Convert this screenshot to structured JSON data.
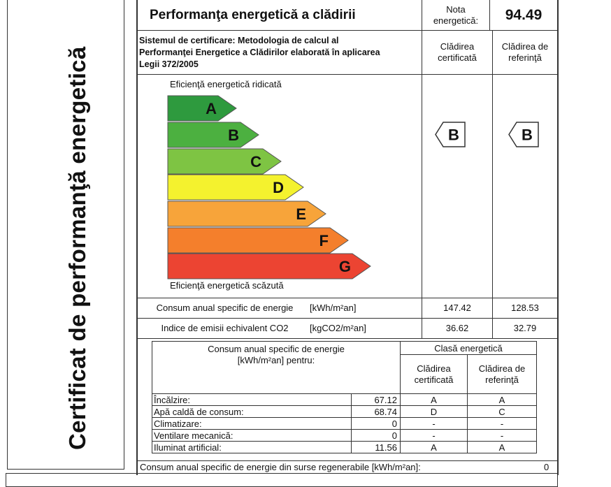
{
  "side_title": "Certificat de performanţă energetică",
  "header": {
    "title": "Performanţa energetică a clădirii",
    "score_label": "Nota energetică:",
    "score_value": "94.49"
  },
  "system": {
    "text": "Sistemul de certificare: Metodologia de calcul al Performanţei Energetice a Clădirilor elaborată în aplicarea Legii 372/2005",
    "col_certified": "Clădirea certificată",
    "col_reference": "Clădirea de referinţă"
  },
  "scale": {
    "top_label": "Eficienţă energetică ridicată",
    "bottom_label": "Eficienţă energetică scăzută",
    "classes": [
      {
        "letter": "A",
        "color": "#2e9a3e"
      },
      {
        "letter": "B",
        "color": "#4cb040"
      },
      {
        "letter": "C",
        "color": "#7ec443"
      },
      {
        "letter": "D",
        "color": "#f4f22e"
      },
      {
        "letter": "E",
        "color": "#f7a43a"
      },
      {
        "letter": "F",
        "color": "#f47f2c"
      },
      {
        "letter": "G",
        "color": "#ec4432"
      }
    ],
    "certified_class": "B",
    "reference_class": "B"
  },
  "summary": [
    {
      "label": "Consum anual specific de energie",
      "unit": "[kWh/m²an]",
      "certified": "147.42",
      "reference": "128.53"
    },
    {
      "label": "Indice de emisii echivalent CO2",
      "unit": "[kgCO2/m²an]",
      "certified": "36.62",
      "reference": "32.79"
    }
  ],
  "breakdown": {
    "header_left": "Consum anual specific de energie [kWh/m²an] pentru:",
    "header_class": "Clasă energetică",
    "col_certified": "Clădirea certificată",
    "col_reference": "Clădirea de referinţă",
    "rows": [
      {
        "label": "Încălzire:",
        "value": "67.12",
        "certified": "A",
        "reference": "A"
      },
      {
        "label": "Apă caldă de consum:",
        "value": "68.74",
        "certified": "D",
        "reference": "C"
      },
      {
        "label": "Climatizare:",
        "value": "0",
        "certified": "-",
        "reference": "-"
      },
      {
        "label": "Ventilare mecanică:",
        "value": "0",
        "certified": "-",
        "reference": "-"
      },
      {
        "label": "Iluminat artificial:",
        "value": "11.56",
        "certified": "A",
        "reference": "A"
      }
    ]
  },
  "renewable": {
    "label": "Consum anual specific de energie din surse regenerabile [kWh/m²an]:",
    "value": "0"
  }
}
